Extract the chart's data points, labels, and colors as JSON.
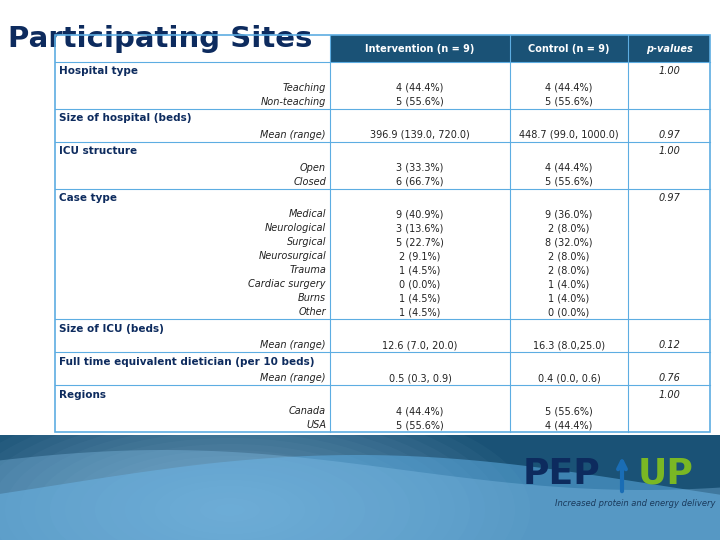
{
  "title": "Participating Sites",
  "title_color": "#0d2b5e",
  "col_headers": [
    "Intervention (n = 9)",
    "Control (n = 9)",
    "p-values"
  ],
  "header_bg": "#1a5276",
  "header_text_color": "#ffffff",
  "table_border_color": "#5dade2",
  "section_text_color": "#0d2b5e",
  "data_text_color": "#222222",
  "rows": [
    {
      "type": "section",
      "label": "Hospital type",
      "col1": "",
      "col2": "",
      "col3": "1.00"
    },
    {
      "type": "data",
      "label": "Teaching",
      "col1": "4 (44.4%)",
      "col2": "4 (44.4%)",
      "col3": ""
    },
    {
      "type": "data",
      "label": "Non-teaching",
      "col1": "5 (55.6%)",
      "col2": "5 (55.6%)",
      "col3": ""
    },
    {
      "type": "section",
      "label": "Size of hospital (beds)",
      "col1": "",
      "col2": "",
      "col3": ""
    },
    {
      "type": "data",
      "label": "Mean (range)",
      "col1": "396.9 (139.0, 720.0)",
      "col2": "448.7 (99.0, 1000.0)",
      "col3": "0.97"
    },
    {
      "type": "section",
      "label": "ICU structure",
      "col1": "",
      "col2": "",
      "col3": "1.00"
    },
    {
      "type": "data",
      "label": "Open",
      "col1": "3 (33.3%)",
      "col2": "4 (44.4%)",
      "col3": ""
    },
    {
      "type": "data",
      "label": "Closed",
      "col1": "6 (66.7%)",
      "col2": "5 (55.6%)",
      "col3": ""
    },
    {
      "type": "section",
      "label": "Case type",
      "col1": "",
      "col2": "",
      "col3": "0.97"
    },
    {
      "type": "data",
      "label": "Medical",
      "col1": "9 (40.9%)",
      "col2": "9 (36.0%)",
      "col3": ""
    },
    {
      "type": "data",
      "label": "Neurological",
      "col1": "3 (13.6%)",
      "col2": "2 (8.0%)",
      "col3": ""
    },
    {
      "type": "data",
      "label": "Surgical",
      "col1": "5 (22.7%)",
      "col2": "8 (32.0%)",
      "col3": ""
    },
    {
      "type": "data",
      "label": "Neurosurgical",
      "col1": "2 (9.1%)",
      "col2": "2 (8.0%)",
      "col3": ""
    },
    {
      "type": "data",
      "label": "Trauma",
      "col1": "1 (4.5%)",
      "col2": "2 (8.0%)",
      "col3": ""
    },
    {
      "type": "data",
      "label": "Cardiac surgery",
      "col1": "0 (0.0%)",
      "col2": "1 (4.0%)",
      "col3": ""
    },
    {
      "type": "data",
      "label": "Burns",
      "col1": "1 (4.5%)",
      "col2": "1 (4.0%)",
      "col3": ""
    },
    {
      "type": "data",
      "label": "Other",
      "col1": "1 (4.5%)",
      "col2": "0 (0.0%)",
      "col3": ""
    },
    {
      "type": "section",
      "label": "Size of ICU (beds)",
      "col1": "",
      "col2": "",
      "col3": ""
    },
    {
      "type": "data",
      "label": "Mean (range)",
      "col1": "12.6 (7.0, 20.0)",
      "col2": "16.3 (8.0,25.0)",
      "col3": "0.12"
    },
    {
      "type": "section",
      "label": "Full time equivalent dietician (per 10 beds)",
      "col1": "",
      "col2": "",
      "col3": ""
    },
    {
      "type": "data",
      "label": "Mean (range)",
      "col1": "0.5 (0.3, 0.9)",
      "col2": "0.4 (0.0, 0.6)",
      "col3": "0.76"
    },
    {
      "type": "section",
      "label": "Regions",
      "col1": "",
      "col2": "",
      "col3": "1.00"
    },
    {
      "type": "data",
      "label": "Canada",
      "col1": "4 (44.4%)",
      "col2": "5 (55.6%)",
      "col3": ""
    },
    {
      "type": "data",
      "label": "USA",
      "col1": "5 (55.6%)",
      "col2": "4 (44.4%)",
      "col3": ""
    }
  ],
  "pepup_dark": "#0d2b5e",
  "pepup_green": "#7ab724",
  "pepup_arrow": "#1a6db5",
  "footer_dark": "#1a5276",
  "footer_light": "#85c1e9",
  "tagline": "Increased protein and energy delivery"
}
